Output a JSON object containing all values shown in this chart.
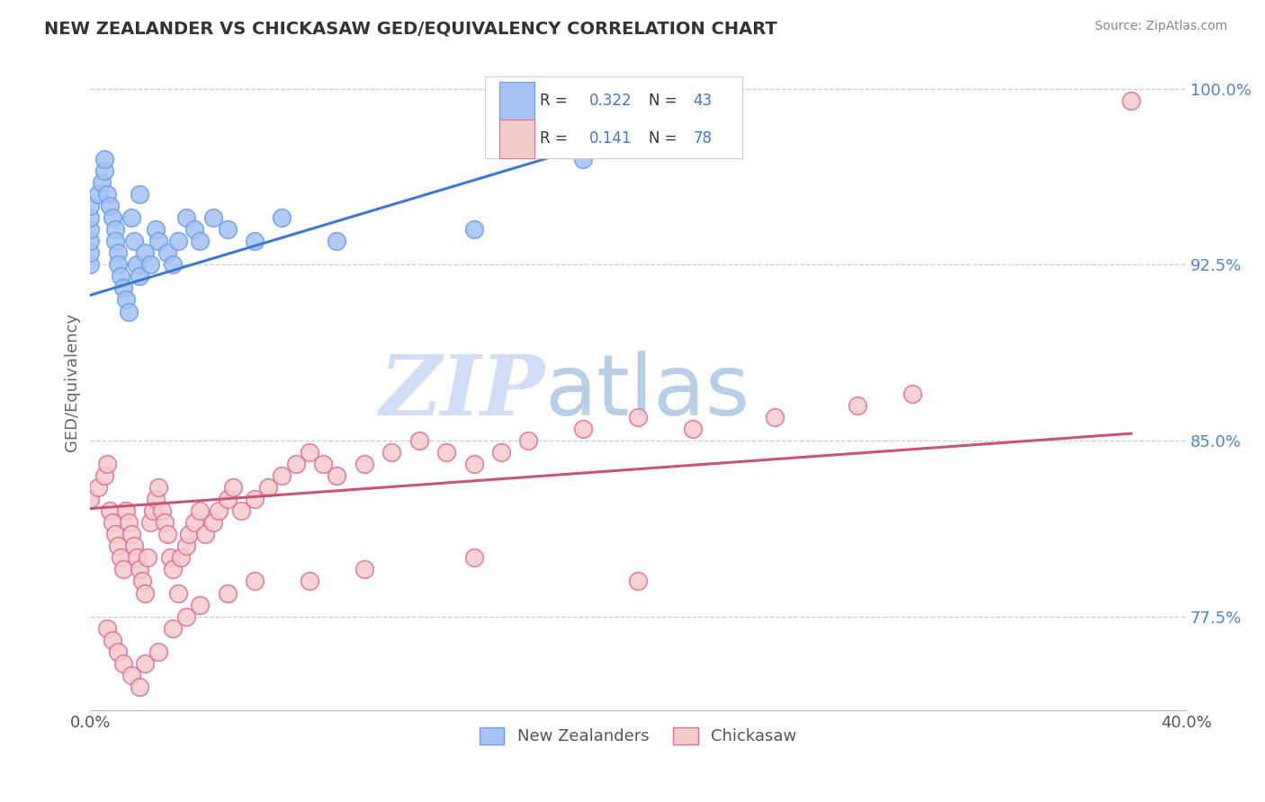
{
  "title": "NEW ZEALANDER VS CHICKASAW GED/EQUIVALENCY CORRELATION CHART",
  "source": "Source: ZipAtlas.com",
  "ylabel": "GED/Equivalency",
  "xlim": [
    0.0,
    0.4
  ],
  "ylim": [
    0.735,
    1.015
  ],
  "ytick_labels": [
    "77.5%",
    "85.0%",
    "92.5%",
    "100.0%"
  ],
  "ytick_vals": [
    0.775,
    0.85,
    0.925,
    1.0
  ],
  "xtick_labels": [
    "0.0%",
    "40.0%"
  ],
  "xtick_vals": [
    0.0,
    0.4
  ],
  "nz_R": "0.322",
  "nz_N": "43",
  "ch_R": "0.141",
  "ch_N": "78",
  "nz_color": "#a4c2f4",
  "ch_color": "#f4cccc",
  "nz_edge_color": "#6d9eeb",
  "ch_edge_color": "#e06c9f",
  "nz_line_color": "#3c78d8",
  "ch_line_color": "#c9547a",
  "background_color": "#ffffff",
  "watermark_color": "#d0dff5",
  "nz_x": [
    0.0,
    0.0,
    0.0,
    0.0,
    0.0,
    0.0,
    0.003,
    0.004,
    0.005,
    0.005,
    0.006,
    0.007,
    0.008,
    0.009,
    0.009,
    0.01,
    0.01,
    0.011,
    0.012,
    0.013,
    0.014,
    0.015,
    0.016,
    0.017,
    0.018,
    0.018,
    0.02,
    0.022,
    0.024,
    0.025,
    0.028,
    0.03,
    0.032,
    0.035,
    0.038,
    0.04,
    0.045,
    0.05,
    0.06,
    0.07,
    0.09,
    0.14,
    0.18
  ],
  "nz_y": [
    0.925,
    0.93,
    0.935,
    0.94,
    0.945,
    0.95,
    0.955,
    0.96,
    0.965,
    0.97,
    0.955,
    0.95,
    0.945,
    0.94,
    0.935,
    0.93,
    0.925,
    0.92,
    0.915,
    0.91,
    0.905,
    0.945,
    0.935,
    0.925,
    0.92,
    0.955,
    0.93,
    0.925,
    0.94,
    0.935,
    0.93,
    0.925,
    0.935,
    0.945,
    0.94,
    0.935,
    0.945,
    0.94,
    0.935,
    0.945,
    0.935,
    0.94,
    0.97
  ],
  "ch_x": [
    0.0,
    0.003,
    0.005,
    0.006,
    0.007,
    0.008,
    0.009,
    0.01,
    0.011,
    0.012,
    0.013,
    0.014,
    0.015,
    0.016,
    0.017,
    0.018,
    0.019,
    0.02,
    0.021,
    0.022,
    0.023,
    0.024,
    0.025,
    0.026,
    0.027,
    0.028,
    0.029,
    0.03,
    0.032,
    0.033,
    0.035,
    0.036,
    0.038,
    0.04,
    0.042,
    0.045,
    0.047,
    0.05,
    0.052,
    0.055,
    0.06,
    0.065,
    0.07,
    0.075,
    0.08,
    0.085,
    0.09,
    0.1,
    0.11,
    0.12,
    0.13,
    0.14,
    0.15,
    0.16,
    0.18,
    0.2,
    0.22,
    0.25,
    0.28,
    0.3,
    0.006,
    0.008,
    0.01,
    0.012,
    0.015,
    0.018,
    0.02,
    0.025,
    0.03,
    0.035,
    0.04,
    0.05,
    0.06,
    0.08,
    0.1,
    0.14,
    0.2,
    0.38
  ],
  "ch_y": [
    0.825,
    0.83,
    0.835,
    0.84,
    0.82,
    0.815,
    0.81,
    0.805,
    0.8,
    0.795,
    0.82,
    0.815,
    0.81,
    0.805,
    0.8,
    0.795,
    0.79,
    0.785,
    0.8,
    0.815,
    0.82,
    0.825,
    0.83,
    0.82,
    0.815,
    0.81,
    0.8,
    0.795,
    0.785,
    0.8,
    0.805,
    0.81,
    0.815,
    0.82,
    0.81,
    0.815,
    0.82,
    0.825,
    0.83,
    0.82,
    0.825,
    0.83,
    0.835,
    0.84,
    0.845,
    0.84,
    0.835,
    0.84,
    0.845,
    0.85,
    0.845,
    0.84,
    0.845,
    0.85,
    0.855,
    0.86,
    0.855,
    0.86,
    0.865,
    0.87,
    0.77,
    0.765,
    0.76,
    0.755,
    0.75,
    0.745,
    0.755,
    0.76,
    0.77,
    0.775,
    0.78,
    0.785,
    0.79,
    0.79,
    0.795,
    0.8,
    0.79,
    0.995
  ],
  "nz_line_x": [
    0.0,
    0.18
  ],
  "nz_line_y": [
    0.912,
    0.975
  ],
  "ch_line_x": [
    0.0,
    0.38
  ],
  "ch_line_y": [
    0.821,
    0.853
  ]
}
